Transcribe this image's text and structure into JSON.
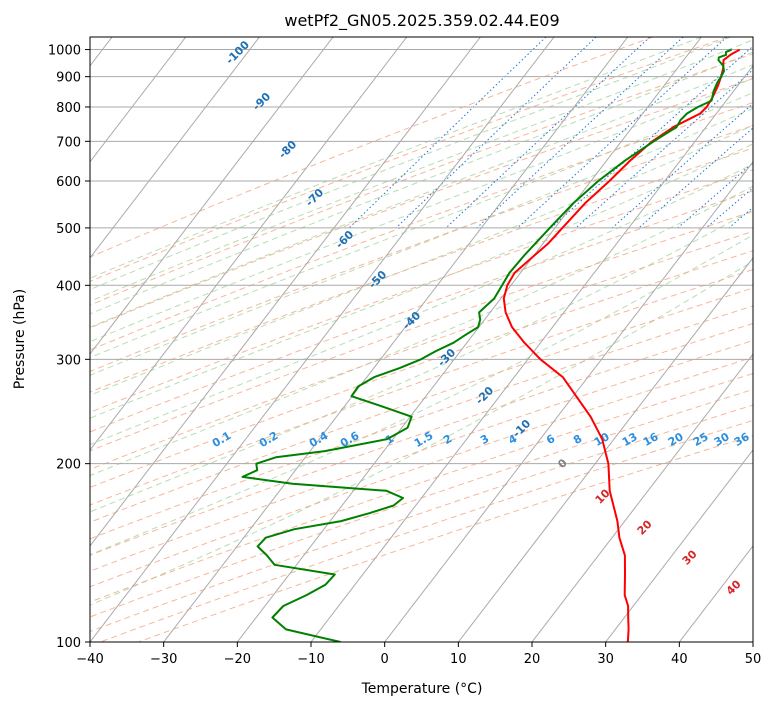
{
  "chart_data": {
    "type": "line",
    "title": "wetPf2_GN05.2025.359.02.44.E09",
    "xlabel": "Temperature (°C)",
    "ylabel": "Pressure (hPa)",
    "xlim": [
      -40,
      50
    ],
    "ylim": [
      1050,
      100
    ],
    "y_scale": "log",
    "grid": true,
    "x_ticks": [
      "−40",
      "−30",
      "−20",
      "−10",
      "0",
      "10",
      "20",
      "30",
      "40",
      "50"
    ],
    "y_ticks": [
      "100",
      "200",
      "300",
      "400",
      "500",
      "600",
      "700",
      "800",
      "900",
      "1000"
    ],
    "series": [
      {
        "color": "#ff0000",
        "pressure": [
          1000,
          980,
          960,
          930,
          900,
          870,
          830,
          800,
          780,
          760,
          740,
          700,
          650,
          600,
          550,
          500,
          470,
          450,
          420,
          400,
          380,
          360,
          340,
          320,
          300,
          280,
          260,
          240,
          220,
          200,
          180,
          160,
          150,
          140,
          130,
          120,
          115,
          110,
          105,
          100
        ],
        "values": [
          -13.5,
          -14.2,
          -14.6,
          -13.8,
          -13.2,
          -12.7,
          -12.2,
          -12.0,
          -12.2,
          -13.3,
          -14.4,
          -15.8,
          -16.8,
          -17.5,
          -18.5,
          -19.0,
          -19.3,
          -19.9,
          -20.8,
          -20.5,
          -19.6,
          -17.9,
          -15.5,
          -12.2,
          -8.3,
          -3.4,
          0.4,
          4.5,
          8.4,
          11.8,
          14.8,
          19.0,
          21.0,
          23.6,
          25.6,
          27.7,
          29.3,
          30.5,
          31.8,
          33.0
        ]
      },
      {
        "color": "#008000",
        "pressure": [
          1000,
          990,
          980,
          970,
          960,
          940,
          920,
          900,
          880,
          850,
          820,
          800,
          780,
          760,
          740,
          700,
          650,
          600,
          550,
          500,
          450,
          420,
          400,
          380,
          360,
          350,
          340,
          330,
          320,
          310,
          300,
          290,
          280,
          270,
          260,
          250,
          240,
          230,
          220,
          210,
          205,
          200,
          195,
          190,
          185,
          180,
          175,
          170,
          165,
          160,
          155,
          150,
          145,
          140,
          135,
          130,
          125,
          120,
          115,
          110,
          105,
          100
        ],
        "values": [
          -14.6,
          -15.1,
          -14.8,
          -15.5,
          -15.3,
          -14.1,
          -13.4,
          -13.2,
          -13.1,
          -12.7,
          -12.0,
          -13.2,
          -14.0,
          -14.2,
          -14.0,
          -15.6,
          -17.5,
          -19.0,
          -20.1,
          -20.7,
          -21.3,
          -21.5,
          -21.2,
          -20.9,
          -21.5,
          -20.6,
          -20.1,
          -21.0,
          -21.8,
          -23.3,
          -24.5,
          -26.5,
          -29.0,
          -30.2,
          -30.1,
          -25.0,
          -19.8,
          -19.2,
          -20.8,
          -28.0,
          -34.0,
          -36.0,
          -35.2,
          -36.5,
          -29.0,
          -15.5,
          -12.5,
          -13.0,
          -15.5,
          -18.5,
          -24.0,
          -27.0,
          -27.2,
          -25.0,
          -23.0,
          -13.8,
          -14.0,
          -15.5,
          -17.5,
          -17.8,
          -14.7,
          -6.0
        ]
      }
    ],
    "isotherm_step": 10,
    "dry_adiabat_labels": [
      "-100",
      "-90",
      "-80",
      "-70",
      "-60",
      "-50",
      "-40",
      "-30",
      "-20",
      "-10",
      "0",
      "10",
      "20",
      "30",
      "40"
    ],
    "mixing_ratio_labels": [
      "0.1",
      "0.2",
      "0.4",
      "0.6",
      "1",
      "1.5",
      "2",
      "3",
      "4",
      "6",
      "8",
      "10",
      "13",
      "16",
      "20",
      "25",
      "30",
      "36"
    ],
    "colors": {
      "temperature": "#ff0000",
      "dewpoint": "#008000",
      "dry_adiabat": "#f4a582",
      "moist_adiabat": "#a6d5a0",
      "mixing_ratio": "#1f77d4",
      "isotherm": "#888888",
      "dry_label": "#1f6fb4",
      "warm_label": "#d62728",
      "zero_label": "#808080",
      "mix_label": "#2b8fe0"
    }
  }
}
